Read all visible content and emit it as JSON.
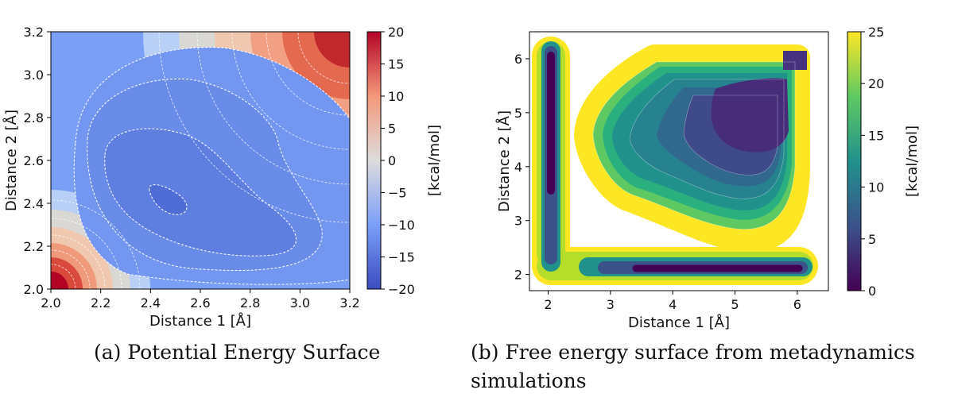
{
  "captions": {
    "a": "(a) Potential Energy Surface",
    "b": "(b) Free energy surface from metadynamics simulations"
  },
  "chart_data": [
    {
      "type": "heatmap",
      "subtitle": "(a) Potential Energy Surface",
      "xlabel": "Distance 1 [Å]",
      "ylabel": "Distance 2 [Å]",
      "xlim": [
        2.0,
        3.2
      ],
      "ylim": [
        2.0,
        3.2
      ],
      "xticks": [
        "2.0",
        "2.2",
        "2.4",
        "2.6",
        "2.8",
        "3.0",
        "3.2"
      ],
      "yticks": [
        "2.0",
        "2.2",
        "2.4",
        "2.6",
        "2.8",
        "3.0",
        "3.2"
      ],
      "colorbar": {
        "label": "[kcal/mol]",
        "range": [
          -20,
          20
        ],
        "ticks": [
          "−20",
          "−15",
          "−10",
          "−5",
          "0",
          "5",
          "10",
          "15",
          "20"
        ],
        "colormap": "coolwarm",
        "colors": [
          "#3b4cc0",
          "#dddcdc",
          "#b40426"
        ]
      },
      "minimum": {
        "x": 2.48,
        "y": 2.4
      },
      "contour_lines": "white dashed"
    },
    {
      "type": "heatmap",
      "subtitle": "(b) Free energy surface from metadynamics simulations",
      "xlabel": "Distance 1 [Å]",
      "ylabel": "Distance 2 [Å]",
      "xlim": [
        1.7,
        6.5
      ],
      "ylim": [
        1.7,
        6.5
      ],
      "xticks": [
        "2",
        "3",
        "4",
        "5",
        "6"
      ],
      "yticks": [
        "2",
        "3",
        "4",
        "5",
        "6"
      ],
      "colorbar": {
        "label": "[kcal/mol]",
        "range": [
          0,
          25
        ],
        "ticks": [
          "0",
          "5",
          "10",
          "15",
          "20",
          "25"
        ],
        "colormap": "viridis",
        "colors": [
          "#440154",
          "#3b528b",
          "#21918c",
          "#5ec962",
          "#fde725"
        ]
      },
      "basins": [
        {
          "x": 2.1,
          "y": 6.0
        },
        {
          "x": 5.1,
          "y": 5.0
        },
        {
          "x": 6.0,
          "y": 6.0
        },
        {
          "x": 5.9,
          "y": 2.1
        }
      ]
    }
  ]
}
